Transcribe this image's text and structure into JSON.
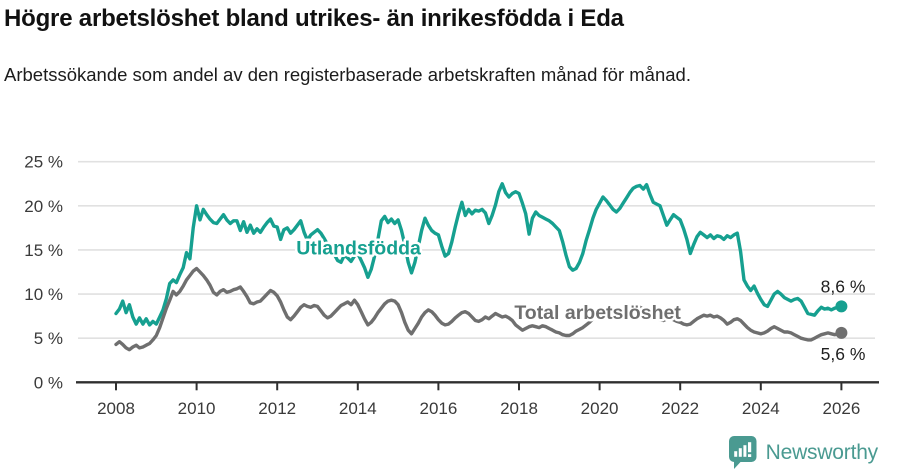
{
  "header": {
    "title": "Högre arbetslöshet bland utrikes- än inrikesfödda i Eda",
    "subtitle": "Arbetssökande som andel av den registerbaserade arbetskraften månad för månad."
  },
  "footer": {
    "brand": "Newsworthy",
    "brand_color": "#4a9a91",
    "logo_icon": "newsworthy-speech-bubble-bar-chart-icon"
  },
  "colors": {
    "grid": "#e1e1e1",
    "axis": "#2f2f2f",
    "tick_label": "#3a3a3a",
    "end_label": "#1f1f1f",
    "teal": "#16a090",
    "gray": "#6f6f6f"
  },
  "chart_data": {
    "type": "line",
    "grid": true,
    "x_axis": {
      "start_year": 2008,
      "interval_months": 1,
      "ticks": [
        {
          "year": 2008,
          "label": "2008"
        },
        {
          "year": 2010,
          "label": "2010"
        },
        {
          "year": 2012,
          "label": "2012"
        },
        {
          "year": 2014,
          "label": "2014"
        },
        {
          "year": 2016,
          "label": "2016"
        },
        {
          "year": 2018,
          "label": "2018"
        },
        {
          "year": 2020,
          "label": "2020"
        },
        {
          "year": 2022,
          "label": "2022"
        },
        {
          "year": 2024,
          "label": "2024"
        },
        {
          "year": 2026,
          "label": "2026"
        }
      ]
    },
    "y_axis": {
      "unit": "%",
      "min": 0,
      "max": 25,
      "ticks": [
        {
          "value": 0,
          "label": "0 %"
        },
        {
          "value": 5,
          "label": "5 %"
        },
        {
          "value": 10,
          "label": "10 %"
        },
        {
          "value": 15,
          "label": "15 %"
        },
        {
          "value": 20,
          "label": "20 %"
        },
        {
          "value": 25,
          "label": "25 %"
        }
      ]
    },
    "series": [
      {
        "key": "utlandsfodda",
        "name": "Utlandsfödda",
        "color": "#16a090",
        "label_anchor": {
          "year": 2014.02,
          "value": 15.3
        },
        "end_label": "8,6 %",
        "end_value": 8.6,
        "end_label_offset": {
          "dx": 24,
          "dy": -14
        },
        "values": [
          7.8,
          8.3,
          9.2,
          7.9,
          8.8,
          7.4,
          6.6,
          7.3,
          6.6,
          7.2,
          6.5,
          6.9,
          6.6,
          7.4,
          8.2,
          9.5,
          11.2,
          11.6,
          11.3,
          12.2,
          13.0,
          14.7,
          14.0,
          17.5,
          20.0,
          18.4,
          19.6,
          19.0,
          18.5,
          18.1,
          18.0,
          18.5,
          19.0,
          18.4,
          18.0,
          18.3,
          18.3,
          17.2,
          18.2,
          17.0,
          17.8,
          16.9,
          17.4,
          17.0,
          17.6,
          18.1,
          18.5,
          17.7,
          17.6,
          16.2,
          17.3,
          17.5,
          16.9,
          17.3,
          17.8,
          18.3,
          17.0,
          16.1,
          16.7,
          17.0,
          17.3,
          16.9,
          16.3,
          15.6,
          15.1,
          14.5,
          13.8,
          13.6,
          14.4,
          14.1,
          13.7,
          14.3,
          14.6,
          13.8,
          13.0,
          11.9,
          12.8,
          14.3,
          16.2,
          18.3,
          18.8,
          18.1,
          18.5,
          18.0,
          18.4,
          17.2,
          15.6,
          13.6,
          12.4,
          13.6,
          15.4,
          17.2,
          18.6,
          17.8,
          17.2,
          16.9,
          16.7,
          15.4,
          14.3,
          14.6,
          15.9,
          17.6,
          19.1,
          20.4,
          18.9,
          19.6,
          19.1,
          19.5,
          19.4,
          19.6,
          19.2,
          18.0,
          18.9,
          20.1,
          21.6,
          22.5,
          21.5,
          21.0,
          21.4,
          21.6,
          21.4,
          20.3,
          19.1,
          16.8,
          18.6,
          19.3,
          18.9,
          18.7,
          18.5,
          18.3,
          18.0,
          17.6,
          17.2,
          15.9,
          14.4,
          13.1,
          12.7,
          12.9,
          13.6,
          14.6,
          16.1,
          17.3,
          18.6,
          19.6,
          20.3,
          21.0,
          20.6,
          20.1,
          19.6,
          19.3,
          19.7,
          20.3,
          20.9,
          21.5,
          22.0,
          22.2,
          22.3,
          21.9,
          22.4,
          21.3,
          20.4,
          20.2,
          20.0,
          18.9,
          17.8,
          18.4,
          19.0,
          18.7,
          18.4,
          17.4,
          16.2,
          14.6,
          15.6,
          16.5,
          17.0,
          16.7,
          16.4,
          16.7,
          16.3,
          16.6,
          16.5,
          16.2,
          16.6,
          16.4,
          16.7,
          16.9,
          14.8,
          11.6,
          10.9,
          10.4,
          10.9,
          10.1,
          9.4,
          8.8,
          8.6,
          9.3,
          10.0,
          10.3,
          10.0,
          9.6,
          9.4,
          9.2,
          9.4,
          9.5,
          9.2,
          8.5,
          7.8,
          7.7,
          7.6,
          8.1,
          8.5,
          8.3,
          8.4,
          8.2,
          8.4,
          8.5,
          8.6
        ]
      },
      {
        "key": "total",
        "name": "Total arbetslöshet",
        "color": "#6f6f6f",
        "label_anchor": {
          "year": 2019.95,
          "value": 7.95
        },
        "end_label": "5,6 %",
        "end_value": 5.6,
        "end_label_offset": {
          "dx": 24,
          "dy": 27
        },
        "values": [
          4.3,
          4.6,
          4.3,
          3.9,
          3.7,
          4.0,
          4.2,
          3.9,
          4.0,
          4.2,
          4.4,
          4.8,
          5.3,
          6.2,
          7.3,
          8.4,
          9.3,
          10.3,
          9.9,
          10.3,
          10.9,
          11.6,
          12.1,
          12.6,
          12.9,
          12.5,
          12.1,
          11.6,
          11.0,
          10.2,
          9.9,
          10.3,
          10.5,
          10.2,
          10.3,
          10.5,
          10.6,
          10.8,
          10.3,
          9.7,
          9.0,
          8.9,
          9.1,
          9.2,
          9.6,
          10.0,
          10.4,
          10.2,
          9.8,
          9.1,
          8.2,
          7.4,
          7.1,
          7.5,
          8.0,
          8.5,
          8.8,
          8.6,
          8.5,
          8.7,
          8.6,
          8.1,
          7.6,
          7.3,
          7.5,
          7.9,
          8.3,
          8.7,
          8.9,
          9.1,
          8.8,
          9.3,
          8.8,
          8.0,
          7.2,
          6.5,
          6.8,
          7.3,
          7.9,
          8.4,
          8.9,
          9.2,
          9.3,
          9.2,
          8.8,
          7.9,
          6.8,
          5.9,
          5.5,
          6.1,
          6.7,
          7.4,
          7.9,
          8.2,
          8.0,
          7.6,
          7.1,
          6.7,
          6.5,
          6.6,
          6.9,
          7.3,
          7.6,
          7.9,
          8.0,
          7.8,
          7.4,
          7.0,
          6.9,
          7.1,
          7.4,
          7.2,
          7.5,
          7.8,
          7.6,
          7.4,
          7.5,
          7.3,
          7.0,
          6.5,
          6.2,
          5.9,
          6.1,
          6.3,
          6.4,
          6.3,
          6.2,
          6.4,
          6.3,
          6.1,
          5.9,
          5.7,
          5.6,
          5.4,
          5.3,
          5.3,
          5.5,
          5.8,
          6.0,
          6.2,
          6.5,
          6.8,
          7.2,
          7.6,
          7.9,
          8.2,
          8.3,
          8.0,
          7.8,
          7.7,
          7.9,
          8.1,
          8.3,
          8.4,
          8.5,
          8.4,
          8.5,
          8.3,
          8.0,
          7.8,
          7.5,
          7.3,
          7.1,
          7.0,
          7.2,
          7.3,
          7.1,
          6.9,
          6.8,
          6.6,
          6.5,
          6.6,
          6.9,
          7.2,
          7.4,
          7.6,
          7.5,
          7.6,
          7.4,
          7.5,
          7.3,
          7.0,
          6.6,
          6.8,
          7.1,
          7.2,
          7.0,
          6.6,
          6.2,
          5.9,
          5.7,
          5.6,
          5.5,
          5.6,
          5.8,
          6.1,
          6.3,
          6.1,
          5.9,
          5.7,
          5.7,
          5.6,
          5.4,
          5.2,
          5.0,
          4.9,
          4.8,
          4.8,
          5.0,
          5.2,
          5.4,
          5.5,
          5.6,
          5.5,
          5.4,
          5.5,
          5.6
        ]
      }
    ]
  }
}
